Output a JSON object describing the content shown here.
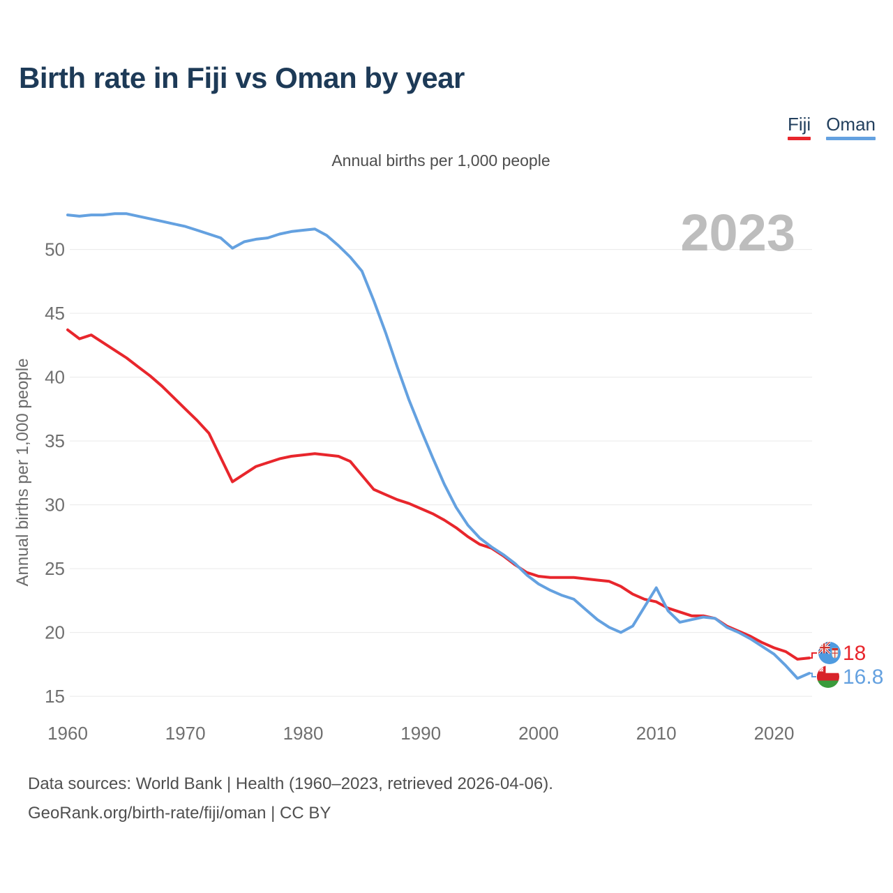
{
  "title": "Birth rate in Fiji vs Oman by year",
  "subtitle": "Annual births per 1,000 people",
  "watermark": "2023",
  "legend": {
    "items": [
      {
        "label": "Fiji",
        "color": "#e8262c"
      },
      {
        "label": "Oman",
        "color": "#64a1e0"
      }
    ]
  },
  "footer": {
    "line1": "Data sources: World Bank | Health (1960–2023, retrieved 2026-04-06).",
    "line2": "GeoRank.org/birth-rate/fiji/oman | CC BY"
  },
  "chart_data": {
    "type": "line",
    "title": "Birth rate in Fiji vs Oman by year",
    "subtitle": "Annual births per 1,000 people",
    "ylabel": "Annual births per 1,000 people",
    "xlabel": "",
    "grid": true,
    "legend_position": "top-right",
    "x_start_year": 1960,
    "x_end_year": 2023,
    "x_range": [
      1960,
      2023
    ],
    "ylim": [
      15,
      53
    ],
    "x_ticks": [
      "1960",
      "1970",
      "1980",
      "1990",
      "2000",
      "2010",
      "2020"
    ],
    "y_ticks": [
      "15",
      "20",
      "25",
      "30",
      "35",
      "40",
      "45",
      "50"
    ],
    "series": [
      {
        "name": "Fiji",
        "color": "#e8262c",
        "end_label": "18",
        "end_value": 18,
        "values": [
          43.7,
          43.0,
          43.3,
          42.7,
          42.1,
          41.5,
          40.8,
          40.1,
          39.3,
          38.4,
          37.5,
          36.6,
          35.6,
          33.7,
          31.8,
          32.4,
          33.0,
          33.3,
          33.6,
          33.8,
          33.9,
          34.0,
          33.9,
          33.8,
          33.4,
          32.3,
          31.2,
          30.8,
          30.4,
          30.1,
          29.7,
          29.3,
          28.8,
          28.2,
          27.5,
          26.9,
          26.6,
          26.0,
          25.3,
          24.7,
          24.4,
          24.3,
          24.3,
          24.3,
          24.2,
          24.1,
          24.0,
          23.6,
          23.0,
          22.6,
          22.4,
          21.9,
          21.6,
          21.3,
          21.3,
          21.1,
          20.5,
          20.1,
          19.7,
          19.2,
          18.8,
          18.5,
          17.9,
          18.0
        ]
      },
      {
        "name": "Oman",
        "color": "#64a1e0",
        "end_label": "16.8",
        "end_value": 16.8,
        "values": [
          52.7,
          52.6,
          52.7,
          52.7,
          52.8,
          52.8,
          52.6,
          52.4,
          52.2,
          52.0,
          51.8,
          51.5,
          51.2,
          50.9,
          50.1,
          50.6,
          50.8,
          50.9,
          51.2,
          51.4,
          51.5,
          51.6,
          51.1,
          50.3,
          49.4,
          48.3,
          46.0,
          43.5,
          40.8,
          38.2,
          35.9,
          33.7,
          31.6,
          29.8,
          28.4,
          27.4,
          26.7,
          26.1,
          25.4,
          24.5,
          23.8,
          23.3,
          22.9,
          22.6,
          21.8,
          21.0,
          20.4,
          20.0,
          20.5,
          22.0,
          23.5,
          21.7,
          20.8,
          21.0,
          21.2,
          21.1,
          20.4,
          20.0,
          19.5,
          18.9,
          18.3,
          17.4,
          16.4,
          16.8
        ]
      }
    ]
  }
}
